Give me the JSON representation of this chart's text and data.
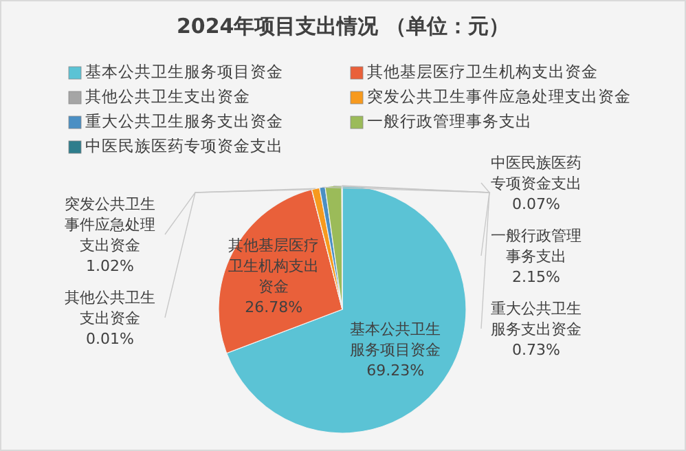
{
  "chart_data": {
    "type": "pie",
    "title": "2024年项目支出情况 （单位：元）",
    "categories": [
      "基本公共卫生服务项目资金",
      "其他基层医疗卫生机构支出资金",
      "其他公共卫生支出资金",
      "突发公共卫生事件应急处理支出资金",
      "重大公共卫生服务支出资金",
      "一般行政管理事务支出",
      "中医民族医药专项资金支出"
    ],
    "values": [
      69.23,
      26.78,
      0.01,
      1.02,
      0.73,
      2.15,
      0.07
    ],
    "value_labels": [
      "69.23%",
      "26.78%",
      "0.01%",
      "1.02%",
      "0.73%",
      "2.15%",
      "0.07%"
    ],
    "colors": [
      "#5bc3d5",
      "#e9603a",
      "#a5a5a5",
      "#f79a1e",
      "#4a8fc4",
      "#9bbb59",
      "#2e7d8c"
    ],
    "legend": "top"
  }
}
